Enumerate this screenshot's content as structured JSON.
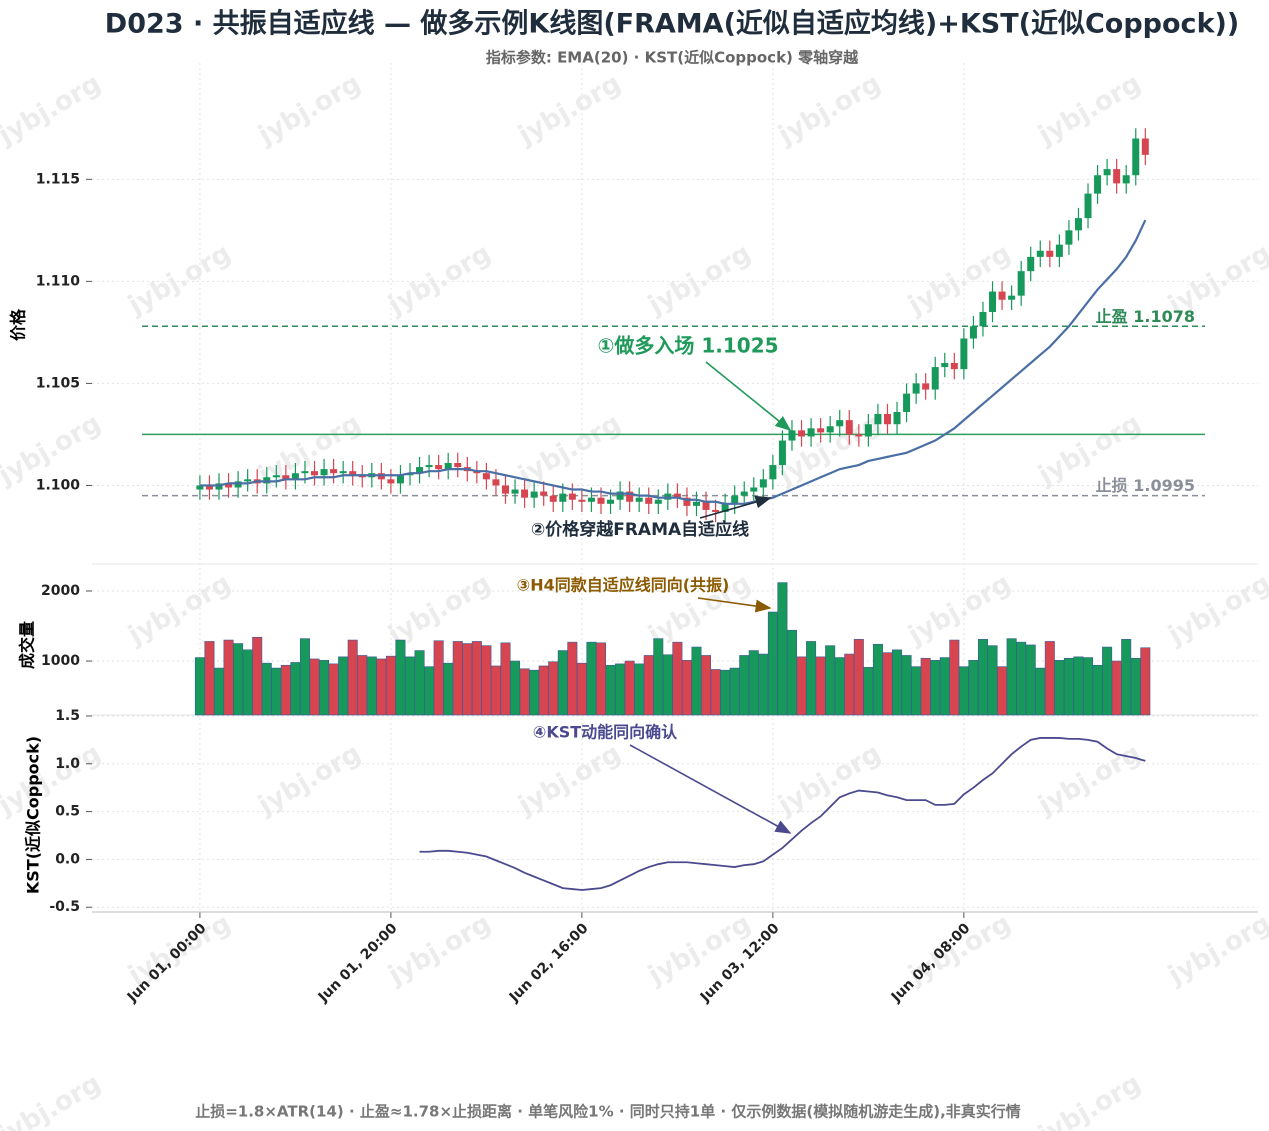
{
  "watermark": "jybj.org",
  "footer": "止损=1.8×ATR(14) · 止盈≈1.78×止损距离 · 单笔风险1% · 同时只持1单 · 仅示例数据(模拟随机游走生成),非真实行情",
  "chart_data": [
    {
      "type": "candlestick",
      "title": "D023 · 共振自适应线 — 做多示例K线图(FRAMA(近似自适应均线)+KST(近似Coppock))",
      "subtitle": "指标参数: EMA(20) · KST(近似Coppock) 零轴穿越",
      "ylabel": "价格",
      "x": [
        0,
        1,
        2,
        3,
        4,
        5,
        6,
        7,
        8,
        9,
        10,
        11,
        12,
        13,
        14,
        15,
        16,
        17,
        18,
        19,
        20,
        21,
        22,
        23,
        24,
        25,
        26,
        27,
        28,
        29,
        30,
        31,
        32,
        33,
        34,
        35,
        36,
        37,
        38,
        39,
        40,
        41,
        42,
        43,
        44,
        45,
        46,
        47,
        48,
        49,
        50,
        51,
        52,
        53,
        54,
        55,
        56,
        57,
        58,
        59,
        60,
        61,
        62,
        63,
        64,
        65,
        66,
        67,
        68,
        69,
        70,
        71,
        72,
        73,
        74,
        75,
        76,
        77,
        78,
        79,
        80,
        81,
        82,
        83,
        84,
        85,
        86,
        87,
        88,
        89,
        90,
        91,
        92,
        93,
        94,
        95,
        96,
        97,
        98,
        99
      ],
      "open": [
        1.0998,
        1.1,
        1.0998,
        1.1001,
        1.0999,
        1.1002,
        1.1003,
        1.1001,
        1.1004,
        1.1005,
        1.1003,
        1.1006,
        1.1007,
        1.1005,
        1.1008,
        1.1006,
        1.1007,
        1.1005,
        1.1004,
        1.1006,
        1.1003,
        1.1001,
        1.1005,
        1.1006,
        1.1009,
        1.101,
        1.1008,
        1.1011,
        1.1009,
        1.1007,
        1.1006,
        1.1003,
        1.1,
        1.0996,
        1.0998,
        1.0994,
        1.0997,
        1.0995,
        1.0992,
        1.0996,
        1.0993,
        1.0992,
        1.0994,
        1.0991,
        1.0993,
        1.0997,
        1.0992,
        1.0994,
        1.0991,
        1.0993,
        1.0996,
        1.0994,
        1.099,
        1.0992,
        1.0988,
        1.0987,
        1.0991,
        1.0995,
        1.0997,
        1.0999,
        1.1003,
        1.101,
        1.1022,
        1.1027,
        1.1024,
        1.1028,
        1.1026,
        1.1029,
        1.1032,
        1.1025,
        1.1024,
        1.103,
        1.1035,
        1.103,
        1.1036,
        1.1045,
        1.105,
        1.1047,
        1.1058,
        1.106,
        1.1057,
        1.1072,
        1.1078,
        1.1085,
        1.1095,
        1.1091,
        1.1093,
        1.1105,
        1.1112,
        1.1115,
        1.1112,
        1.1118,
        1.1125,
        1.1131,
        1.1143,
        1.1152,
        1.1155,
        1.1148,
        1.1152,
        1.117
      ],
      "high": [
        1.1005,
        1.1005,
        1.1006,
        1.1006,
        1.1007,
        1.1008,
        1.1008,
        1.1009,
        1.101,
        1.101,
        1.1011,
        1.1012,
        1.1012,
        1.1013,
        1.1013,
        1.1012,
        1.1012,
        1.101,
        1.1011,
        1.1011,
        1.1008,
        1.101,
        1.1011,
        1.1014,
        1.1015,
        1.1015,
        1.1016,
        1.1016,
        1.1014,
        1.1012,
        1.1011,
        1.1008,
        1.1005,
        1.1003,
        1.1003,
        1.1002,
        1.1002,
        1.1,
        1.1001,
        1.1001,
        1.0998,
        1.0999,
        1.0999,
        1.0998,
        1.1002,
        1.1002,
        1.0999,
        1.0999,
        1.0998,
        1.1001,
        1.1001,
        1.0999,
        1.0997,
        1.0997,
        1.0993,
        1.0996,
        1.1,
        1.1002,
        1.1004,
        1.1008,
        1.1015,
        1.1027,
        1.1032,
        1.1032,
        1.1033,
        1.1033,
        1.1034,
        1.1037,
        1.1037,
        1.103,
        1.1035,
        1.104,
        1.104,
        1.1041,
        1.105,
        1.1055,
        1.1055,
        1.1063,
        1.1065,
        1.1065,
        1.1077,
        1.1083,
        1.109,
        1.11,
        1.11,
        1.1098,
        1.111,
        1.1117,
        1.112,
        1.112,
        1.1123,
        1.113,
        1.1136,
        1.1148,
        1.1157,
        1.116,
        1.116,
        1.1157,
        1.1175,
        1.1175
      ],
      "low": [
        1.0993,
        1.0993,
        1.0993,
        1.0994,
        1.0994,
        1.0997,
        1.0996,
        1.0996,
        1.0999,
        1.0998,
        1.0998,
        1.1001,
        1.1,
        1.1,
        1.1001,
        1.1001,
        1.1,
        1.0999,
        1.0999,
        1.0998,
        1.0996,
        1.0996,
        1.1,
        1.1001,
        1.1004,
        1.1003,
        1.1003,
        1.1004,
        1.1002,
        1.1001,
        1.0998,
        1.0995,
        1.0991,
        1.0991,
        1.0989,
        1.0989,
        1.099,
        1.0987,
        1.0987,
        1.0988,
        1.0987,
        1.0987,
        1.0986,
        1.0986,
        1.0988,
        1.0987,
        1.0987,
        1.0986,
        1.0986,
        1.0988,
        1.0989,
        1.0985,
        1.0985,
        1.0983,
        1.0982,
        1.0982,
        1.0986,
        1.099,
        1.0992,
        1.0994,
        1.0998,
        1.1005,
        1.1017,
        1.1019,
        1.1019,
        1.1021,
        1.1021,
        1.1024,
        1.102,
        1.1019,
        1.1019,
        1.1025,
        1.1025,
        1.1025,
        1.1031,
        1.104,
        1.1042,
        1.1042,
        1.1053,
        1.1052,
        1.1052,
        1.1067,
        1.1073,
        1.108,
        1.1086,
        1.1086,
        1.1088,
        1.11,
        1.1107,
        1.1107,
        1.1107,
        1.1113,
        1.112,
        1.1126,
        1.1138,
        1.1147,
        1.1143,
        1.1143,
        1.1147,
        1.1157
      ],
      "close": [
        1.1,
        1.0998,
        1.1001,
        1.0999,
        1.1002,
        1.1003,
        1.1001,
        1.1004,
        1.1005,
        1.1003,
        1.1006,
        1.1007,
        1.1005,
        1.1008,
        1.1006,
        1.1007,
        1.1005,
        1.1004,
        1.1006,
        1.1003,
        1.1001,
        1.1005,
        1.1006,
        1.1009,
        1.101,
        1.1008,
        1.1011,
        1.1009,
        1.1007,
        1.1006,
        1.1003,
        1.1,
        1.0996,
        1.0998,
        1.0994,
        1.0997,
        1.0995,
        1.0992,
        1.0996,
        1.0993,
        1.0992,
        1.0994,
        1.0991,
        1.0993,
        1.0997,
        1.0992,
        1.0994,
        1.0991,
        1.0993,
        1.0996,
        1.0994,
        1.099,
        1.0992,
        1.0988,
        1.0987,
        1.0991,
        1.0995,
        1.0997,
        1.0999,
        1.1003,
        1.101,
        1.1022,
        1.1027,
        1.1024,
        1.1028,
        1.1026,
        1.1029,
        1.1032,
        1.1025,
        1.1024,
        1.103,
        1.1035,
        1.103,
        1.1036,
        1.1045,
        1.105,
        1.1047,
        1.1058,
        1.106,
        1.1057,
        1.1072,
        1.1078,
        1.1085,
        1.1095,
        1.1091,
        1.1093,
        1.1105,
        1.1112,
        1.1115,
        1.1112,
        1.1118,
        1.1125,
        1.1131,
        1.1143,
        1.1152,
        1.1155,
        1.1148,
        1.1152,
        1.117,
        1.1162
      ],
      "up_color": "#16995a",
      "down_color": "#d64550",
      "overlay": {
        "color": "#4a6fa5",
        "values": [
          1.1,
          1.1,
          1.1,
          1.1001,
          1.1001,
          1.1001,
          1.1002,
          1.1002,
          1.1002,
          1.1003,
          1.1003,
          1.1003,
          1.1004,
          1.1004,
          1.1004,
          1.1005,
          1.1005,
          1.1005,
          1.1005,
          1.1005,
          1.1005,
          1.1005,
          1.1006,
          1.1006,
          1.1007,
          1.1007,
          1.1008,
          1.1008,
          1.1008,
          1.1007,
          1.1007,
          1.1006,
          1.1005,
          1.1004,
          1.1003,
          1.1002,
          1.1001,
          1.1,
          1.0999,
          1.0998,
          1.0998,
          1.0997,
          1.0997,
          1.0996,
          1.0996,
          1.0996,
          1.0995,
          1.0995,
          1.0994,
          1.0994,
          1.0994,
          1.0993,
          1.0993,
          1.0992,
          1.0992,
          1.0991,
          1.0991,
          1.0991,
          1.0992,
          1.0993,
          1.0994,
          1.0996,
          1.0998,
          1.1,
          1.1002,
          1.1004,
          1.1006,
          1.1008,
          1.1009,
          1.101,
          1.1012,
          1.1013,
          1.1014,
          1.1015,
          1.1016,
          1.1018,
          1.102,
          1.1022,
          1.1025,
          1.1028,
          1.1032,
          1.1036,
          1.104,
          1.1044,
          1.1048,
          1.1052,
          1.1056,
          1.106,
          1.1064,
          1.1068,
          1.1073,
          1.1078,
          1.1084,
          1.109,
          1.1096,
          1.1101,
          1.1106,
          1.1112,
          1.112,
          1.113
        ]
      },
      "hlines": [
        {
          "value": 1.1078,
          "label": "止盈 1.1078",
          "color": "#2e8b57",
          "style": "dashed"
        },
        {
          "value": 1.1025,
          "color": "#2e9e5e",
          "style": "solid"
        },
        {
          "value": 1.0995,
          "label": "止损 1.0995",
          "color": "#8a8f99",
          "style": "dashed"
        }
      ],
      "annotations": [
        "①做多入场 1.1025",
        "②价格穿越FRAMA自适应线"
      ],
      "xlim": [
        -11.3,
        110.8
      ],
      "xticks": [
        {
          "value": 0,
          "label": "Jun 01, 00:00"
        },
        {
          "value": 20,
          "label": "Jun 01, 20:00"
        },
        {
          "value": 40,
          "label": "Jun 02, 16:00"
        },
        {
          "value": 60,
          "label": "Jun 03, 12:00"
        },
        {
          "value": 80,
          "label": "Jun 04, 08:00"
        }
      ],
      "ylim": [
        1.0962,
        1.1207
      ],
      "yticks": [
        {
          "value": 1.1,
          "label": "1.100"
        },
        {
          "value": 1.105,
          "label": "1.105"
        },
        {
          "value": 1.11,
          "label": "1.110"
        },
        {
          "value": 1.115,
          "label": "1.115"
        }
      ],
      "grid": true
    },
    {
      "type": "bar",
      "ylabel": "成交量",
      "edge_color": "#3d5a99",
      "values": [
        1050,
        1280,
        900,
        1300,
        1250,
        1160,
        1340,
        970,
        900,
        940,
        980,
        1320,
        1030,
        1010,
        960,
        1060,
        1300,
        1080,
        1060,
        1030,
        1070,
        1300,
        1060,
        1150,
        920,
        1290,
        970,
        1280,
        1250,
        1280,
        1220,
        930,
        1260,
        1000,
        890,
        870,
        930,
        990,
        1150,
        1270,
        970,
        1270,
        1260,
        940,
        960,
        1000,
        960,
        1080,
        1320,
        1090,
        1270,
        1010,
        1200,
        1080,
        880,
        870,
        900,
        1080,
        1150,
        1100,
        1700,
        2120,
        1440,
        1060,
        1280,
        1060,
        1220,
        1050,
        1100,
        1310,
        910,
        1240,
        1120,
        1160,
        1080,
        920,
        1040,
        1010,
        1050,
        1300,
        920,
        1010,
        1310,
        1220,
        920,
        1320,
        1270,
        1230,
        900,
        1280,
        1010,
        1040,
        1060,
        1050,
        940,
        1200,
        1000,
        1310,
        1040,
        1190
      ],
      "annotations": [
        "③H4同款自适应线同向(共振)"
      ],
      "ylim": [
        230,
        2371
      ],
      "yticks": [
        1000,
        2000
      ],
      "grid": true
    },
    {
      "type": "line",
      "ylabel": "KST(近似Coppock)",
      "color": "#4b4a8f",
      "values": [
        null,
        null,
        null,
        null,
        null,
        null,
        null,
        null,
        null,
        null,
        null,
        null,
        null,
        null,
        null,
        null,
        null,
        null,
        null,
        null,
        null,
        null,
        null,
        0.08,
        0.08,
        0.09,
        0.09,
        0.08,
        0.07,
        0.05,
        0.03,
        -0.01,
        -0.05,
        -0.09,
        -0.14,
        -0.18,
        -0.22,
        -0.26,
        -0.3,
        -0.31,
        -0.32,
        -0.31,
        -0.3,
        -0.27,
        -0.22,
        -0.17,
        -0.12,
        -0.08,
        -0.05,
        -0.03,
        -0.03,
        -0.03,
        -0.04,
        -0.05,
        -0.06,
        -0.07,
        -0.08,
        -0.06,
        -0.05,
        -0.02,
        0.05,
        0.12,
        0.21,
        0.3,
        0.38,
        0.45,
        0.55,
        0.65,
        0.69,
        0.72,
        0.71,
        0.7,
        0.67,
        0.65,
        0.62,
        0.62,
        0.62,
        0.57,
        0.57,
        0.58,
        0.68,
        0.75,
        0.83,
        0.9,
        1.0,
        1.1,
        1.18,
        1.25,
        1.27,
        1.27,
        1.27,
        1.26,
        1.26,
        1.25,
        1.23,
        1.16,
        1.1,
        1.08,
        1.06,
        1.03
      ],
      "annotations": [
        "④KST动能同向确认"
      ],
      "ylim": [
        -0.55,
        1.51
      ],
      "yticks": [
        -0.5,
        {
          "value": 0,
          "label": "0.0"
        },
        0.5,
        {
          "value": 1,
          "label": "1.0"
        },
        {
          "value": 1.5,
          "label": "1.5"
        }
      ],
      "grid": true
    }
  ]
}
